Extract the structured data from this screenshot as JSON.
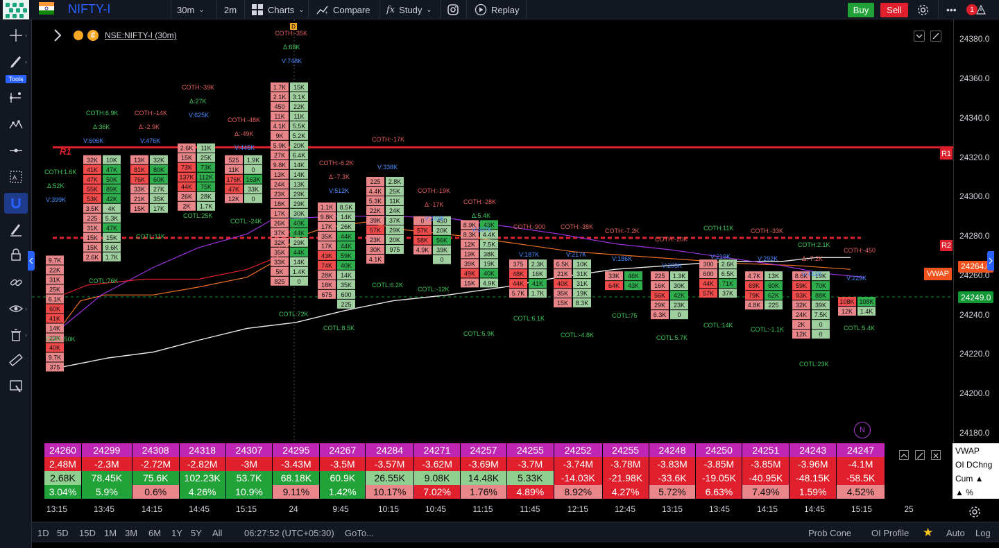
{
  "topbar": {
    "symbol": "NIFTY-I",
    "interval": "30m",
    "interval2": "2m",
    "charts_label": "Charts",
    "compare_label": "Compare",
    "study_label": "Study",
    "replay_label": "Replay",
    "buy_label": "Buy",
    "sell_label": "Sell",
    "more_label": "•••",
    "alert_badge": "1"
  },
  "lefttoolbar": {
    "tools_label": "Tools"
  },
  "legend": {
    "symbol_label": "NSE:NIFTY-I (30m)",
    "marker": "D"
  },
  "levels": {
    "r1_label": "R1",
    "r1_tag": "R1",
    "r2_tag": "R2",
    "vwap_tag": "VWAP",
    "vwap_value": "24264.6",
    "last_price": "24249.0",
    "n_marker": "N"
  },
  "price_axis": [
    "24380.0",
    "24360.0",
    "24340.0",
    "24320.0",
    "24300.0",
    "24280.0",
    "24260.0",
    "24240.0",
    "24220.0",
    "24200.0",
    "24180.0"
  ],
  "time_axis": [
    "13:15",
    "13:45",
    "14:15",
    "14:45",
    "15:15",
    "24",
    "9:45",
    "10:15",
    "10:45",
    "11:15",
    "11:45",
    "12:15",
    "12:45",
    "13:15",
    "13:45",
    "14:15",
    "14:45",
    "15:15",
    "25"
  ],
  "table": {
    "vwap_row": [
      "24260",
      "24299",
      "24308",
      "24318",
      "24307",
      "24295",
      "24267",
      "24284",
      "24271",
      "24257",
      "24255",
      "24252",
      "24255",
      "24248",
      "24250",
      "24251",
      "24243",
      "24247"
    ],
    "oi_row": [
      "2.48M",
      "-2.3M",
      "-2.72M",
      "-2.82M",
      "-3M",
      "-3.43M",
      "-3.5M",
      "-3.57M",
      "-3.62M",
      "-3.69M",
      "-3.7M",
      "-3.74M",
      "-3.78M",
      "-3.83M",
      "-3.85M",
      "-3.85M",
      "-3.96M",
      "-4.1M"
    ],
    "cum_row": [
      "2.68K",
      "78.45K",
      "75.6K",
      "102.23K",
      "53.7K",
      "68.18K",
      "60.9K",
      "26.55K",
      "9.08K",
      "14.48K",
      "5.33K",
      "-14.03K",
      "-21.98K",
      "-33.6K",
      "-19.05K",
      "-40.95K",
      "-48.15K",
      "-58.5K"
    ],
    "pct_row": [
      "3.04%",
      "5.9%",
      "0.6%",
      "4.26%",
      "10.9%",
      "9.11%",
      "1.42%",
      "10.17%",
      "7.02%",
      "1.76%",
      "4.89%",
      "8.92%",
      "4.27%",
      "5.72%",
      "6.63%",
      "7.49%",
      "1.59%",
      "4.52%"
    ],
    "right_labels": [
      "VWAP",
      "OI DChng",
      "Cum ▲",
      "▲ %"
    ]
  },
  "bottombar": {
    "ranges": [
      "1D",
      "5D",
      "15D",
      "1M",
      "3M",
      "6M",
      "1Y",
      "5Y",
      "All"
    ],
    "clock": "06:27:52 (UTC+05:30)",
    "goto": "GoTo...",
    "prob_cone": "Prob Cone",
    "oi_profile": "OI Profile",
    "auto": "Auto",
    "log": "Log"
  },
  "colors": {
    "bg": "#000000",
    "toolbar": "#131722",
    "red_level": "#e0202c",
    "buy": "#22a339",
    "sell": "#e0202c",
    "vwap_tag": "#f0541e",
    "last_price": "#0f9a36",
    "accent_blue": "#2962ff"
  },
  "chart_data": {
    "type": "footprint",
    "title": "NSE:NIFTY-I (30m)",
    "ylim": [
      24175,
      24390
    ],
    "annotations": [
      {
        "text": "COTH:1.6K"
      },
      {
        "text": "Δ:52K"
      },
      {
        "text": "V:399K"
      },
      {
        "text": "COTH:6.9K"
      },
      {
        "text": "Δ:36K"
      },
      {
        "text": "V:606K"
      },
      {
        "text": "COTH:-14K"
      },
      {
        "text": "Δ:-2.9K"
      },
      {
        "text": "V:476K"
      },
      {
        "text": "COTH:-39K"
      },
      {
        "text": "Δ:27K"
      },
      {
        "text": "V:625K"
      },
      {
        "text": "COTH:-48K"
      },
      {
        "text": "Δ:-49K"
      },
      {
        "text": "V:445K"
      },
      {
        "text": "COTH:-35K"
      },
      {
        "text": "Δ:68K"
      },
      {
        "text": "V:748K"
      },
      {
        "text": "COTH:-6.2K"
      },
      {
        "text": "Δ:-7.3K"
      },
      {
        "text": "V:512K"
      },
      {
        "text": "COTH:-17K"
      },
      {
        "text": "V:338K"
      },
      {
        "text": "COTH:-19K"
      },
      {
        "text": "Δ:-17K"
      },
      {
        "text": "V:249K"
      },
      {
        "text": "COTH:-28K"
      },
      {
        "text": "Δ:5.4K"
      },
      {
        "text": "V:307K"
      },
      {
        "text": "COTH:-900"
      },
      {
        "text": "V:187K"
      },
      {
        "text": "COTH:-38K"
      },
      {
        "text": "V:217K"
      },
      {
        "text": "COTH:-7.2K"
      },
      {
        "text": "V:186K"
      },
      {
        "text": "COTH:-20K"
      },
      {
        "text": "V:203K"
      },
      {
        "text": "COTH:11K"
      },
      {
        "text": "V:219K"
      },
      {
        "text": "COTH:-33K"
      },
      {
        "text": "V:292K"
      },
      {
        "text": "COTH:2.1K"
      },
      {
        "text": "Δ:-7.2K"
      },
      {
        "text": "V:452K"
      },
      {
        "text": "COTH:-450"
      },
      {
        "text": "V:229K"
      },
      {
        "text": "COTL:50K"
      },
      {
        "text": "COTL:76K"
      },
      {
        "text": "COTL:11K"
      },
      {
        "text": "COTL:25K"
      },
      {
        "text": "COTL:-24K"
      },
      {
        "text": "COTL:72K"
      },
      {
        "text": "COTL:8.5K"
      },
      {
        "text": "COTL:6.2K"
      },
      {
        "text": "COTL:-12K"
      },
      {
        "text": "COTL:5.9K"
      },
      {
        "text": "COTL:6.1K"
      },
      {
        "text": "COTL:-4.8K"
      },
      {
        "text": "COTL:75"
      },
      {
        "text": "COTL:5.7K"
      },
      {
        "text": "COTL:14K"
      },
      {
        "text": "COTL:-1.1K"
      },
      {
        "text": "COTL:23K"
      },
      {
        "text": "COTL:5.4K"
      }
    ],
    "bars": [
      {
        "time": "13:15",
        "left": [
          "9.7K",
          "22K",
          "31K",
          "25K",
          "6.1K",
          "60K",
          "41K",
          "14K",
          "23K",
          "40K",
          "9.7K",
          "375"
        ],
        "right": []
      },
      {
        "time": "13:45",
        "left": [
          "32K",
          "41K",
          "47K",
          "55K",
          "53K",
          "3.5K",
          "225",
          "31K",
          "15K",
          "15K",
          "2.6K"
        ],
        "right": [
          "10K",
          "47K",
          "50K",
          "89K",
          "42K",
          "4K",
          "5.3K",
          "47K",
          "15K",
          "9.6K",
          "1.7K"
        ]
      },
      {
        "time": "14:15",
        "left": [
          "13K",
          "81K",
          "76K",
          "33K",
          "21K",
          "15K"
        ],
        "right": [
          "32K",
          "80K",
          "60K",
          "27K",
          "35K",
          "17K"
        ]
      },
      {
        "time": "14:45",
        "left": [
          "2.6K",
          "15K",
          "73K",
          "137K",
          "44K",
          "26K",
          "2K"
        ],
        "right": [
          "11K",
          "25K",
          "73K",
          "112K",
          "75K",
          "28K",
          "1.7K"
        ]
      },
      {
        "time": "15:15",
        "left": [
          "525",
          "11K",
          "176K",
          "47K",
          "12K"
        ],
        "right": [
          "1.9K",
          "0",
          "163K",
          "33K",
          "0"
        ]
      },
      {
        "time": "24 09:15",
        "left": [
          "1.7K",
          "2.1K",
          "450",
          "11K",
          "4.1K",
          "9K",
          "5.9K",
          "27K",
          "9.8K",
          "13K",
          "24K",
          "23K",
          "18K",
          "17K",
          "26K",
          "37K",
          "32K",
          "35K",
          "33K",
          "5K",
          "825"
        ],
        "right": [
          "15K",
          "3.1K",
          "22K",
          "11K",
          "5.5K",
          "5.2K",
          "20K",
          "6.4K",
          "14K",
          "14K",
          "13K",
          "29K",
          "29K",
          "30K",
          "40K",
          "44K",
          "29K",
          "44K",
          "14K",
          "1.4K",
          "0"
        ]
      },
      {
        "time": "9:45",
        "left": [
          "1.1K",
          "9.8K",
          "17K",
          "35K",
          "17K",
          "43K",
          "74K",
          "28K",
          "18K",
          "675"
        ],
        "right": [
          "8.5K",
          "14K",
          "26K",
          "44K",
          "44K",
          "59K",
          "40K",
          "14K",
          "35K",
          "600",
          "225"
        ]
      },
      {
        "time": "10:15",
        "left": [
          "225",
          "4.4K",
          "5.3K",
          "22K",
          "39K",
          "57K",
          "23K",
          "30K",
          "4.1K"
        ],
        "right": [
          "2.8K",
          "25K",
          "11K",
          "24K",
          "37K",
          "29K",
          "20K",
          "975"
        ]
      },
      {
        "time": "10:45",
        "left": [
          "0",
          "57K",
          "58K",
          "4.9K"
        ],
        "right": [
          "450",
          "20K",
          "56K",
          "39K",
          "0"
        ]
      },
      {
        "time": "11:15",
        "left": [
          "8.9K",
          "8.3K",
          "12K",
          "19K",
          "39K",
          "49K",
          "15K"
        ],
        "right": [
          "43K",
          "4.4K",
          "7.5K",
          "38K",
          "19K",
          "40K",
          "4.9K"
        ]
      },
      {
        "time": "11:45",
        "left": [
          "375",
          "48K",
          "44K",
          "5.7K"
        ],
        "right": [
          "2.3K",
          "16K",
          "41K",
          "1.7K"
        ]
      },
      {
        "time": "12:15",
        "left": [
          "6.5K",
          "21K",
          "40K",
          "35K",
          "15K"
        ],
        "right": [
          "10K",
          "31K",
          "31K",
          "19K",
          "8.3K"
        ]
      },
      {
        "time": "12:45",
        "left": [
          "33K",
          "64K"
        ],
        "right": [
          "46K",
          "43K"
        ]
      },
      {
        "time": "13:15",
        "left": [
          "225",
          "16K",
          "56K",
          "29K",
          "6.3K"
        ],
        "right": [
          "1.3K",
          "30K",
          "42K",
          "23K",
          "0"
        ]
      },
      {
        "time": "13:45",
        "left": [
          "300",
          "600",
          "44K",
          "57K"
        ],
        "right": [
          "2.6K",
          "6.5K",
          "71K",
          "37K"
        ]
      },
      {
        "time": "14:15",
        "left": [
          "4.7K",
          "69K",
          "79K",
          "4.8K"
        ],
        "right": [
          "13K",
          "60K",
          "62K",
          "225"
        ]
      },
      {
        "time": "14:45",
        "left": [
          "8.6K",
          "59K",
          "93K",
          "32K",
          "24K",
          "2K",
          "12K"
        ],
        "right": [
          "19K",
          "70K",
          "88K",
          "39K",
          "7.5K",
          "0",
          "0"
        ]
      },
      {
        "time": "15:15",
        "left": [
          "108K",
          "12K"
        ],
        "right": [
          "108K",
          "1.4K"
        ]
      }
    ]
  }
}
